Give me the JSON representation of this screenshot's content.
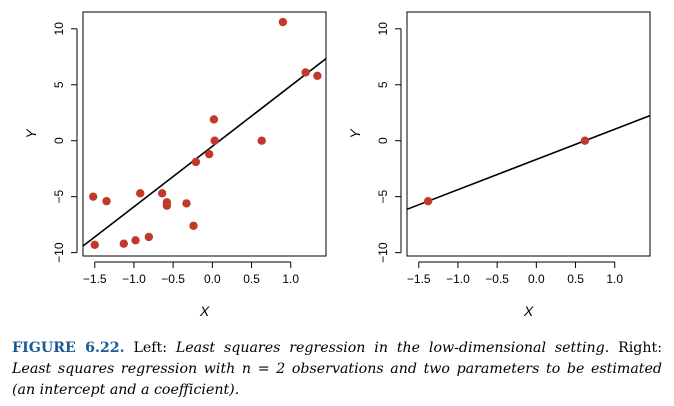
{
  "chart_data": [
    {
      "type": "scatter",
      "panel": "left",
      "xlabel": "X",
      "ylabel": "Y",
      "xlim": [
        -1.65,
        1.45
      ],
      "ylim": [
        -10.3,
        11.5
      ],
      "xticks": [
        -1.5,
        -1.0,
        -0.5,
        0.0,
        0.5,
        1.0
      ],
      "xtick_labels": [
        "−1.5",
        "−1.0",
        "−0.5",
        "0.0",
        "0.5",
        "1.0"
      ],
      "yticks": [
        -10,
        -5,
        0,
        5,
        10
      ],
      "ytick_labels": [
        "−10",
        "−5",
        "0",
        "5",
        "10"
      ],
      "points": [
        {
          "x": -1.52,
          "y": -5.0
        },
        {
          "x": -1.5,
          "y": -9.3
        },
        {
          "x": -1.35,
          "y": -5.4
        },
        {
          "x": -1.13,
          "y": -9.2
        },
        {
          "x": -0.98,
          "y": -8.9
        },
        {
          "x": -0.92,
          "y": -4.7
        },
        {
          "x": -0.81,
          "y": -8.6
        },
        {
          "x": -0.64,
          "y": -4.7
        },
        {
          "x": -0.58,
          "y": -5.5
        },
        {
          "x": -0.58,
          "y": -5.8
        },
        {
          "x": -0.33,
          "y": -5.6
        },
        {
          "x": -0.24,
          "y": -7.6
        },
        {
          "x": -0.21,
          "y": -1.9
        },
        {
          "x": -0.04,
          "y": -1.2
        },
        {
          "x": 0.02,
          "y": 1.9
        },
        {
          "x": 0.03,
          "y": 0.0
        },
        {
          "x": 0.63,
          "y": 0.0
        },
        {
          "x": 0.9,
          "y": 10.6
        },
        {
          "x": 1.19,
          "y": 6.1
        },
        {
          "x": 1.34,
          "y": 5.8
        }
      ],
      "fit_line": {
        "slope": 5.4,
        "intercept": -0.5
      }
    },
    {
      "type": "scatter",
      "panel": "right",
      "xlabel": "X",
      "ylabel": "Y",
      "xlim": [
        -1.65,
        1.45
      ],
      "ylim": [
        -10.3,
        11.5
      ],
      "xticks": [
        -1.5,
        -1.0,
        -0.5,
        0.0,
        0.5,
        1.0
      ],
      "xtick_labels": [
        "−1.5",
        "−1.0",
        "−0.5",
        "0.0",
        "0.5",
        "1.0"
      ],
      "yticks": [
        -10,
        -5,
        0,
        5,
        10
      ],
      "ytick_labels": [
        "−10",
        "−5",
        "0",
        "5",
        "10"
      ],
      "points": [
        {
          "x": -1.38,
          "y": -5.4
        },
        {
          "x": 0.62,
          "y": 0.0
        }
      ],
      "fit_line": {
        "slope": 2.7,
        "intercept": -1.674
      }
    }
  ],
  "colors": {
    "point": "#c0392b",
    "line": "#000000",
    "caption_label": "#1a5a96"
  },
  "caption": {
    "label": "FIGURE 6.22.",
    "left_prefix": "Left:",
    "left_text": "Least squares regression in the low-dimensional setting.",
    "right_prefix": "Right:",
    "right_text": "Least squares regression with n = 2 observations and two parameters to be estimated (an intercept and a coefficient)."
  }
}
